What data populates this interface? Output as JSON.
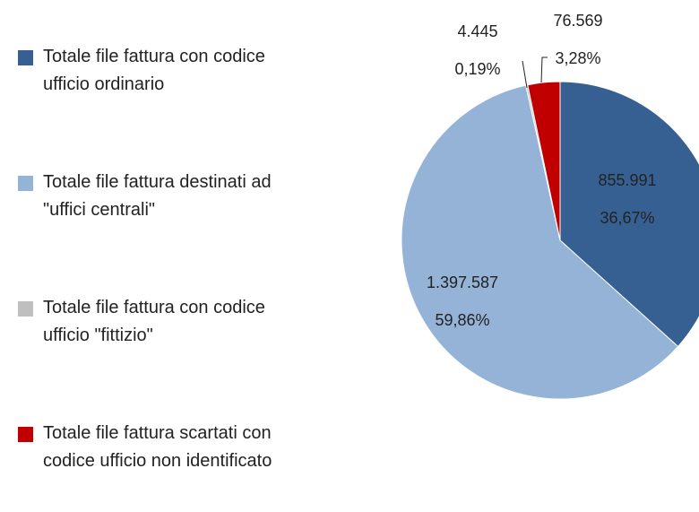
{
  "chart_data": {
    "type": "pie",
    "categories": [
      "Totale file fattura con codice ufficio ordinario",
      "Totale file fattura destinati ad \"uffici centrali\"",
      "Totale file fattura con codice ufficio \"fittizio\"",
      "Totale file fattura scartati con codice ufficio non identificato"
    ],
    "values": [
      855991,
      1397587,
      4445,
      76569
    ],
    "value_labels": [
      "855.991",
      "1.397.587",
      "4.445",
      "76.569"
    ],
    "percents": [
      36.67,
      59.86,
      0.19,
      3.28
    ],
    "percent_labels": [
      "36,67%",
      "59,86%",
      "0,19%",
      "3,28%"
    ],
    "colors": [
      "#376092",
      "#95b3d7",
      "#bfbfbf",
      "#c00000"
    ],
    "legend": "left"
  }
}
